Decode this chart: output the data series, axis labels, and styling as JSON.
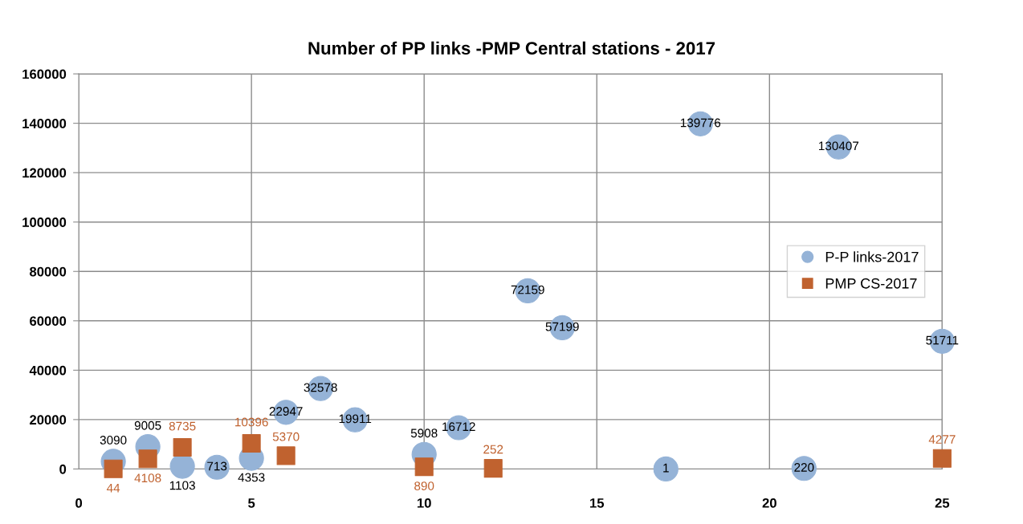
{
  "chart_data": {
    "type": "scatter",
    "title": "Number of PP links -PMP Central stations - 2017",
    "xlim": [
      0,
      25
    ],
    "xticks": [
      0,
      5,
      10,
      15,
      20,
      25
    ],
    "ylim": [
      0,
      160000
    ],
    "yticks": [
      0,
      20000,
      40000,
      60000,
      80000,
      100000,
      120000,
      140000,
      160000
    ],
    "grid": true,
    "legend": "right",
    "data_labels": true,
    "series": [
      {
        "name": "P-P links-2017",
        "color": "#95b3d7",
        "marker": "circle",
        "x": [
          1,
          2,
          3,
          4,
          5,
          6,
          7,
          8,
          10,
          11,
          13,
          14,
          17,
          18,
          21,
          22,
          25
        ],
        "values": [
          3090,
          9005,
          1103,
          713,
          4353,
          22947,
          32578,
          19911,
          5908,
          16712,
          72159,
          57199,
          1,
          139776,
          220,
          130407,
          51711
        ]
      },
      {
        "name": "PMP CS-2017",
        "color": "#c0622f",
        "marker": "square",
        "x": [
          1,
          2,
          3,
          5,
          6,
          10,
          12,
          25
        ],
        "values": [
          44,
          4108,
          8735,
          10396,
          5370,
          890,
          252,
          4277
        ]
      }
    ]
  }
}
